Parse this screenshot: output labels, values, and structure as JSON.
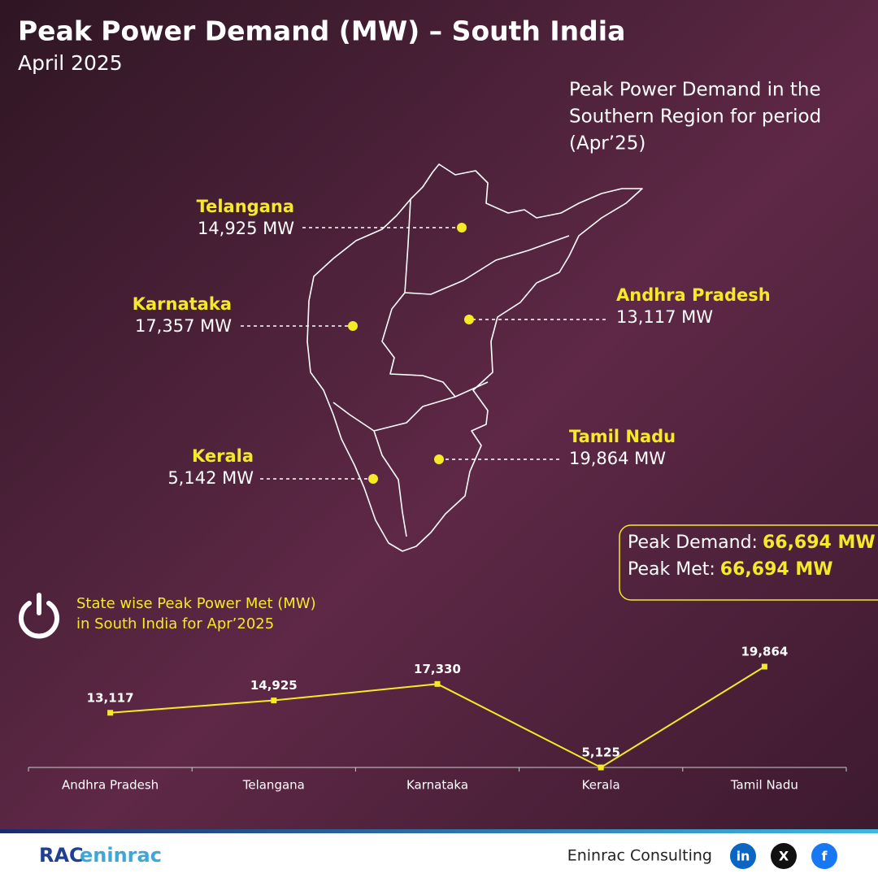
{
  "header": {
    "title": "Peak Power Demand (MW) – South India",
    "subtitle": "April 2025"
  },
  "map": {
    "caption": [
      "Peak Power Demand in the",
      "Southern Region for period",
      "(Apr’25)"
    ],
    "states": [
      {
        "name": "Telangana",
        "value": "14,925 MW"
      },
      {
        "name": "Karnataka",
        "value": "17,357 MW"
      },
      {
        "name": "Andhra Pradesh",
        "value": "13,117 MW"
      },
      {
        "name": "Tamil Nadu",
        "value": "19,864 MW"
      },
      {
        "name": "Kerala",
        "value": "5,142 MW"
      }
    ]
  },
  "summary": [
    {
      "label": "Peak Demand:",
      "value": "66,694 MW"
    },
    {
      "label": "Peak Met:",
      "value": "66,694 MW"
    }
  ],
  "chart_data": {
    "type": "line",
    "title": [
      "State wise Peak Power Met (MW)",
      "in South India for Apr’2025"
    ],
    "categories": [
      "Andhra Pradesh",
      "Telangana",
      "Karnataka",
      "Kerala",
      "Tamil Nadu"
    ],
    "values": [
      13117,
      14925,
      17330,
      5125,
      19864
    ],
    "value_labels": [
      "13,117",
      "14,925",
      "17,330",
      "5,125",
      "19,864"
    ],
    "color": "#f5e928"
  },
  "footer": {
    "logo": [
      "RAC",
      "eninrac"
    ],
    "brand": "Eninrac Consulting",
    "social": [
      "in",
      "X",
      "f"
    ]
  }
}
